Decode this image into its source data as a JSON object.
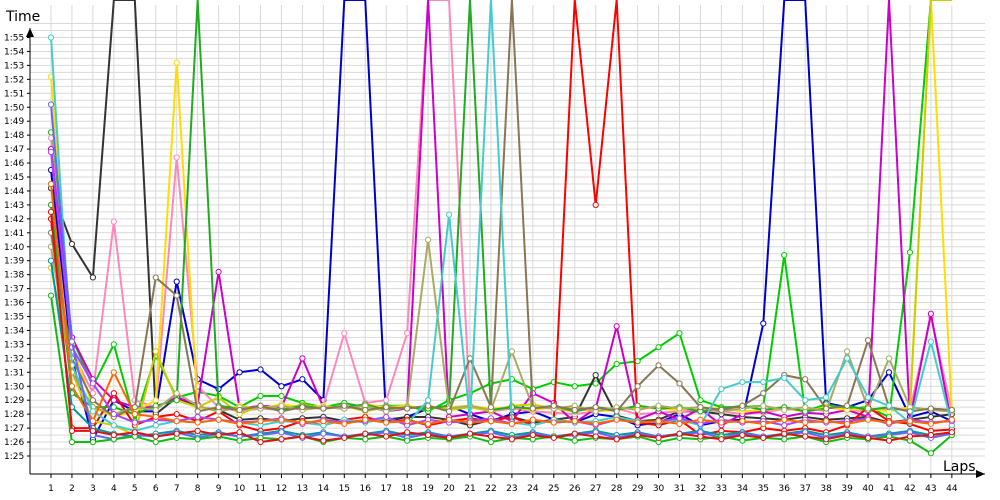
{
  "chart_data": {
    "type": "line",
    "ylabel": "Time",
    "xlabel": "Laps",
    "x": [
      1,
      2,
      3,
      4,
      5,
      6,
      7,
      8,
      9,
      10,
      11,
      12,
      13,
      14,
      15,
      16,
      17,
      18,
      19,
      20,
      21,
      22,
      23,
      24,
      25,
      26,
      27,
      28,
      29,
      30,
      31,
      32,
      33,
      34,
      35,
      36,
      37,
      38,
      39,
      40,
      41,
      42,
      43,
      44
    ],
    "y_ticks": [
      "1:25",
      "1:26",
      "1:27",
      "1:28",
      "1:29",
      "1:30",
      "1:31",
      "1:32",
      "1:33",
      "1:34",
      "1:35",
      "1:36",
      "1:37",
      "1:38",
      "1:39",
      "1:40",
      "1:41",
      "1:42",
      "1:43",
      "1:44",
      "1:45",
      "1:46",
      "1:47",
      "1:48",
      "1:49",
      "1:50",
      "1:51",
      "1:52",
      "1:53",
      "1:54",
      "1:55"
    ],
    "ylim_seconds": [
      84.3,
      116.8
    ],
    "grid": true,
    "series": [
      {
        "color": "#0000cc",
        "values": [
          105.5,
          92,
          86.2,
          89,
          88.2,
          88.2,
          97.5,
          90.5,
          89.8,
          91,
          91.2,
          90,
          90.5,
          89,
          300,
          300,
          87.5,
          87.8,
          88.4,
          88.6,
          88,
          87.5,
          88,
          88.2,
          87.6,
          87.4,
          88,
          87.8,
          87.2,
          87.4,
          88,
          87.2,
          87.5,
          87.6,
          94.5,
          300,
          300,
          88.8,
          88.5,
          89,
          91,
          87.8,
          88.2,
          87.5
        ]
      },
      {
        "color": "#00cc00",
        "values": [
          108.2,
          93.5,
          90,
          93,
          87.5,
          92.2,
          89.2,
          89.6,
          89.3,
          88.5,
          89.3,
          89.3,
          88.8,
          88.5,
          88.8,
          88.5,
          88.6,
          88.6,
          88.2,
          89,
          89.5,
          90.2,
          90.5,
          89.8,
          90.3,
          90,
          90.2,
          91.6,
          91.8,
          92.8,
          93.8,
          89,
          88.5,
          88.5,
          88.6,
          99.4,
          88.2,
          88.7,
          88.4,
          88.5,
          87.8,
          99.6,
          300,
          300
        ]
      },
      {
        "color": "#333333",
        "values": [
          104.2,
          100.2,
          97.8,
          300,
          300,
          88,
          89.2,
          88.5,
          88.3,
          87.6,
          87.7,
          87.5,
          87.7,
          87.8,
          87.5,
          87.5,
          87.6,
          87.8,
          87.8,
          87.6,
          87.2,
          87.6,
          87.8,
          87.4,
          87.6,
          87.8,
          90.8,
          87.9,
          87.5,
          87.6,
          88.2,
          88.2,
          88,
          87.8,
          87.7,
          87.6,
          87.8,
          87.6,
          87.7,
          87.8,
          87.4,
          87.6,
          87.8,
          88
        ]
      },
      {
        "color": "#ff88bb",
        "values": [
          107.8,
          92.5,
          89.5,
          101.8,
          89,
          88.5,
          106.4,
          90,
          88.5,
          88.2,
          88.4,
          88.3,
          88.5,
          88.6,
          93.8,
          88.8,
          89,
          93.8,
          300,
          300,
          88.6,
          88.2,
          88.4,
          88.2,
          88.1,
          88,
          88.2,
          88.4,
          88,
          88.1,
          88.2,
          88.3,
          88.2,
          88,
          88.1,
          88.4,
          88.2,
          88.5,
          88.3,
          88.2,
          88.4,
          88.3,
          95,
          88.2
        ]
      },
      {
        "color": "#cc00cc",
        "values": [
          107,
          93.5,
          90.5,
          89,
          88.5,
          88.5,
          89.2,
          88.7,
          98.2,
          88.4,
          88.6,
          88.5,
          92,
          88.5,
          88.4,
          88.7,
          88.2,
          88.4,
          300,
          87.8,
          88,
          88.2,
          87.5,
          89.5,
          88.8,
          87.4,
          88.4,
          94.3,
          87.6,
          88.2,
          87.6,
          88.4,
          87.2,
          88,
          88.2,
          87.8,
          88.1,
          88,
          88.3,
          87.8,
          300,
          87.6,
          95.2,
          87.2
        ]
      },
      {
        "color": "#ffdd00",
        "values": [
          112.2,
          93,
          88.5,
          87.8,
          88.2,
          89,
          113.2,
          88.5,
          88.2,
          88.6,
          88.4,
          88.7,
          88.5,
          88.6,
          88.4,
          88.7,
          88.5,
          88.6,
          88.4,
          88.5,
          88.6,
          88.4,
          88.5,
          88.3,
          88.5,
          88.4,
          88.2,
          88.3,
          88.5,
          88.4,
          88.3,
          88.5,
          88.4,
          88.2,
          88.3,
          88.4,
          88.2,
          88.5,
          88.3,
          88.4,
          88.2,
          88.5,
          300,
          88.2
        ]
      },
      {
        "color": "#ff0000",
        "values": [
          102,
          87,
          87,
          89.5,
          87.2,
          87.8,
          88,
          87.5,
          88.2,
          87.2,
          86.8,
          87,
          87.5,
          87.2,
          87.6,
          87.8,
          87.4,
          87.6,
          87.2,
          87.5,
          87.7,
          87.5,
          87.8,
          87.2,
          87.6,
          300,
          103,
          300,
          87.4,
          87.2,
          87.6,
          86.5,
          86.8,
          86.7,
          87,
          86.8,
          87,
          86.7,
          87.2,
          88.5,
          87.5,
          87.3,
          86.8,
          86.9
        ]
      },
      {
        "color": "#cccc00",
        "values": [
          98.5,
          91,
          87.5,
          87.2,
          86.5,
          92.5,
          89,
          88.5,
          89.2,
          88,
          88.6,
          88.3,
          88.7,
          88.4,
          88.6,
          88.2,
          88.5,
          88.4,
          88.6,
          88.3,
          88.5,
          88.2,
          88.6,
          88.7,
          88.4,
          88.2,
          88.5,
          88.3,
          88.6,
          88.4,
          88.5,
          88.2,
          88.4,
          88.6,
          88.3,
          88.5,
          88.2,
          88.4,
          88.6,
          88.3,
          88.5,
          88.2,
          300,
          300
        ]
      },
      {
        "color": "#22aa22",
        "values": [
          103,
          89.5,
          88.5,
          88.5,
          88,
          88.6,
          89,
          300,
          88.6,
          88.4,
          88.5,
          88.3,
          88.6,
          88.4,
          88.5,
          88.7,
          88.3,
          88.5,
          88.4,
          88.6,
          300,
          88.3,
          88.5,
          88.4,
          88.6,
          88.2,
          88.5,
          88.3,
          88.6,
          88.4,
          88.5,
          88.2,
          88.4,
          88.6,
          88.3,
          88.5,
          88.2,
          88.4,
          88.6,
          88.3,
          88.5,
          88.2,
          88.4,
          88.3
        ]
      },
      {
        "color": "#aaaa66",
        "values": [
          100,
          91,
          88.5,
          88,
          88.5,
          88.3,
          89.5,
          88.6,
          88.2,
          88.5,
          88.4,
          88.6,
          88.3,
          88.5,
          88.4,
          88.6,
          88.2,
          88.5,
          100.5,
          88.4,
          88.6,
          88.3,
          92.5,
          88.5,
          88.4,
          88.6,
          88.2,
          88.5,
          88.3,
          88.6,
          88.4,
          88.5,
          88.2,
          88.4,
          88.6,
          88.3,
          88.5,
          88.2,
          92.5,
          88.4,
          92,
          88.5,
          88.3,
          88.2
        ]
      },
      {
        "color": "#887755",
        "values": [
          101,
          92,
          89,
          87.8,
          88.5,
          97.8,
          96.5,
          88.2,
          88.5,
          88.3,
          88.6,
          88.2,
          88.5,
          88.4,
          88.6,
          88.3,
          88.5,
          88.4,
          88.6,
          88.2,
          92,
          88.5,
          300,
          88.4,
          88.6,
          88.3,
          88.5,
          88.2,
          90,
          91.5,
          90.2,
          88.5,
          88.3,
          88.6,
          89.5,
          90.8,
          90.5,
          88.4,
          88.6,
          93.3,
          88.5,
          88.2,
          88.4,
          88.3
        ]
      },
      {
        "color": "#44cccc",
        "values": [
          115,
          91.5,
          88.2,
          87.2,
          86.8,
          87.2,
          87.5,
          87.8,
          87.6,
          87.4,
          87.2,
          87.5,
          87.4,
          87.2,
          87.6,
          87.4,
          87.7,
          87.3,
          89,
          102.3,
          87.6,
          300,
          87.4,
          87.2,
          87.6,
          87.4,
          87.5,
          87.8,
          87.5,
          87.4,
          87.6,
          87.2,
          89.8,
          90.3,
          90.3,
          90.6,
          89,
          89.2,
          92,
          89.2,
          88.6,
          87.4,
          93.2,
          87.2
        ]
      },
      {
        "color": "#aa44ff",
        "values": [
          106.8,
          92.8,
          90.2,
          88,
          87.4,
          87.6,
          87.5,
          87.8,
          87.6,
          87.4,
          87.5,
          87.7,
          87.3,
          87.6,
          87.4,
          87.5,
          87.8,
          87.2,
          87.6,
          87.4,
          87.5,
          87.7,
          87.3,
          87.6,
          87.4,
          87.5,
          87.2,
          87.6,
          87.4,
          87.5,
          87.7,
          87.3,
          87.6,
          87.4,
          87.5,
          87.2,
          87.6,
          87.4,
          87.5,
          87.7,
          87.3,
          87.6,
          87.4,
          87.5
        ]
      },
      {
        "color": "#ff6600",
        "values": [
          104.5,
          90,
          87.5,
          91,
          88,
          87.8,
          87.5,
          87.4,
          87.6,
          87.3,
          87.5,
          87.6,
          87.4,
          87.5,
          87.3,
          87.6,
          87.4,
          87.5,
          87.3,
          87.6,
          87.4,
          87.5,
          87.3,
          87.6,
          87.4,
          87.5,
          87.3,
          87.6,
          87.4,
          87.5,
          87.3,
          87.6,
          87.4,
          87.5,
          87.3,
          87.6,
          87.4,
          87.5,
          87.3,
          87.6,
          87.4,
          87.5,
          87.3,
          87.6
        ]
      },
      {
        "color": "#009999",
        "values": [
          99,
          88.5,
          87,
          86.6,
          86.4,
          86.6,
          86.8,
          86.5,
          86.7,
          86.4,
          86.6,
          86.8,
          86.5,
          86.7,
          86.4,
          86.6,
          86.8,
          86.5,
          86.7,
          86.4,
          86.6,
          86.8,
          86.5,
          86.7,
          86.4,
          86.6,
          86.8,
          86.5,
          86.7,
          86.4,
          86.6,
          86.8,
          86.5,
          86.7,
          86.4,
          86.6,
          86.8,
          86.5,
          86.7,
          86.4,
          86.6,
          86.8,
          86.5,
          86.7
        ]
      },
      {
        "color": "#6666ff",
        "values": [
          110.2,
          93.2,
          86.5,
          86.2,
          86.5,
          86.4,
          86.7,
          86.3,
          86.6,
          86.4,
          86.5,
          86.7,
          86.3,
          86.6,
          86.4,
          86.5,
          86.7,
          86.3,
          86.6,
          86.4,
          86.5,
          86.7,
          86.3,
          86.6,
          86.4,
          86.5,
          86.7,
          86.3,
          86.6,
          86.4,
          86.5,
          86.7,
          86.3,
          86.6,
          86.4,
          86.5,
          86.7,
          86.3,
          86.6,
          86.4,
          86.5,
          86.7,
          86.3,
          86.6
        ]
      },
      {
        "color": "#11bb11",
        "values": [
          96.5,
          86,
          86,
          86.2,
          86.4,
          86,
          86.3,
          86.2,
          86.4,
          86.1,
          86.3,
          86.2,
          86.4,
          86,
          86.3,
          86.2,
          86.4,
          86.1,
          86.3,
          86.2,
          86.4,
          86,
          86.3,
          86.2,
          86.4,
          86.1,
          86.3,
          86.2,
          86.4,
          86,
          86.3,
          86.2,
          86.4,
          86.1,
          86.3,
          86.2,
          86.4,
          86,
          86.3,
          86.2,
          86.4,
          86.1,
          85.2,
          86.5
        ]
      },
      {
        "color": "#dd1111",
        "values": [
          102.5,
          86.8,
          86.8,
          86.5,
          86.7,
          86.4,
          86.6,
          86.8,
          86.5,
          86.7,
          86,
          86.2,
          86.4,
          86.1,
          86.3,
          86.6,
          86.4,
          86.7,
          86.5,
          86.3,
          86.6,
          86.4,
          86.2,
          86.5,
          86.3,
          86.6,
          86.4,
          86.2,
          86.5,
          86.3,
          86.6,
          86.4,
          86.2,
          86.5,
          86.3,
          86.6,
          86.4,
          86.2,
          86.5,
          86.3,
          86.1,
          86.4,
          86.5,
          86.7
        ]
      }
    ]
  }
}
